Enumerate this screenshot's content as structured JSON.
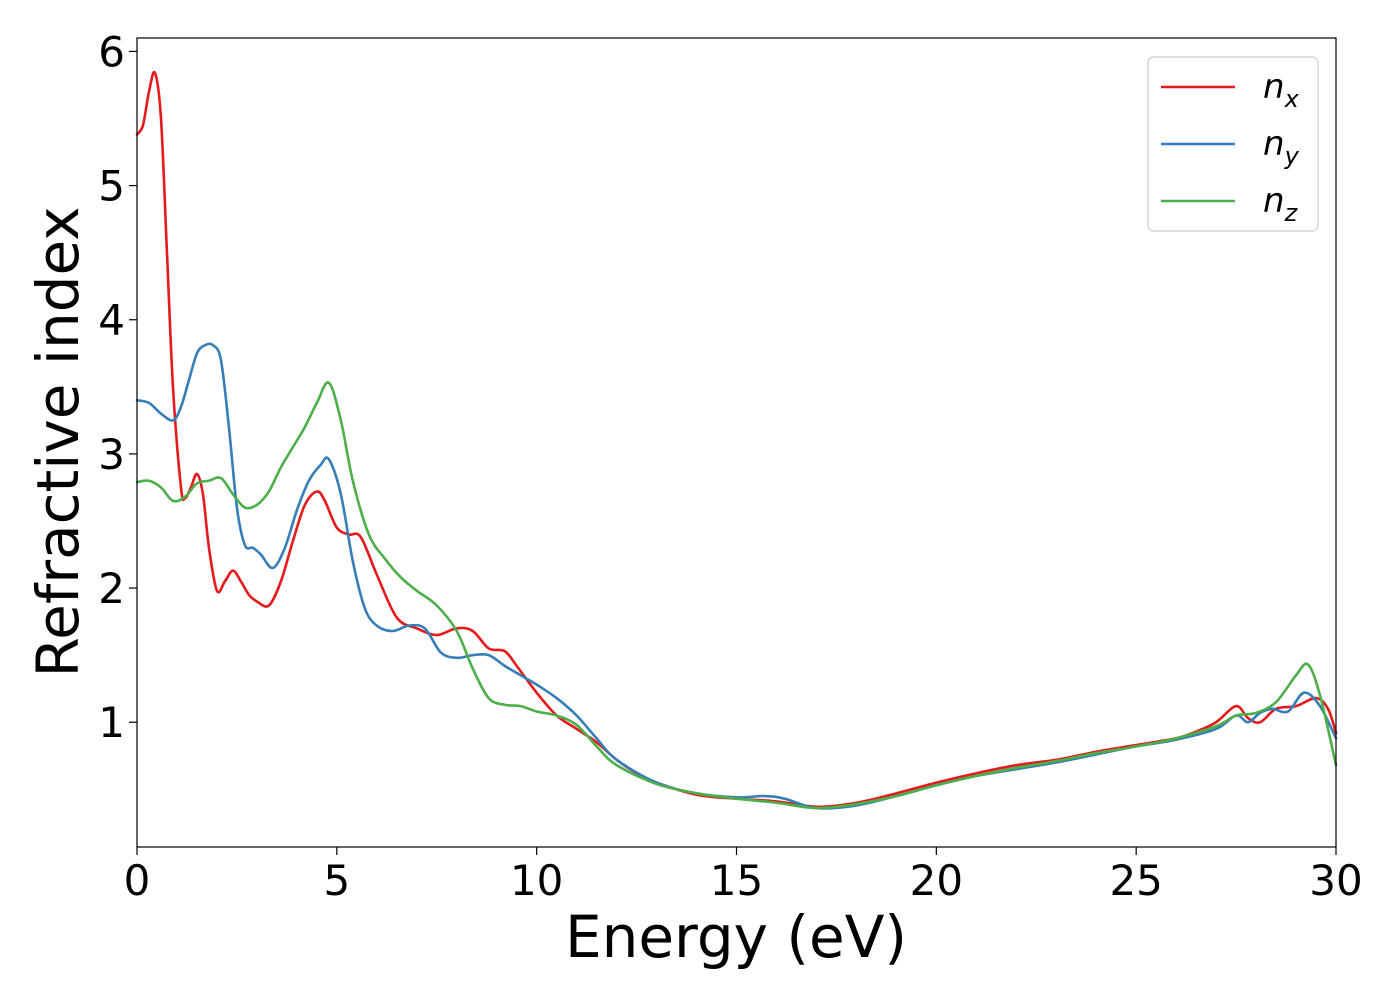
{
  "chart_data": {
    "type": "line",
    "xlabel": "Energy (eV)",
    "ylabel": "Refractive index",
    "xlim": [
      0,
      30
    ],
    "ylim": [
      0.07,
      6.1
    ],
    "xticks": [
      0,
      5,
      10,
      15,
      20,
      25,
      30
    ],
    "yticks": [
      1,
      2,
      3,
      4,
      5,
      6
    ],
    "grid": false,
    "legend_position": "top-right",
    "series": [
      {
        "name": "n",
        "subscript": "x",
        "color": "#e41a1c",
        "x": [
          0,
          0.15,
          0.3,
          0.45,
          0.6,
          0.75,
          0.9,
          1.1,
          1.2,
          1.35,
          1.5,
          1.65,
          1.8,
          2.0,
          2.2,
          2.4,
          2.6,
          2.8,
          3.0,
          3.3,
          3.6,
          3.9,
          4.2,
          4.5,
          4.7,
          5.0,
          5.3,
          5.6,
          6.0,
          6.5,
          7.0,
          7.5,
          8.0,
          8.4,
          8.8,
          9.2,
          9.5,
          10.0,
          10.5,
          11.0,
          11.5,
          12.0,
          12.5,
          13.0,
          14.0,
          15.0,
          16.0,
          17.0,
          18.0,
          19.0,
          20.0,
          21.0,
          22.0,
          23.0,
          24.0,
          25.0,
          26.0,
          26.5,
          27.0,
          27.5,
          27.8,
          28.1,
          28.5,
          29.0,
          29.5,
          29.8,
          30.0
        ],
        "values": [
          5.38,
          5.45,
          5.7,
          5.84,
          5.5,
          4.5,
          3.5,
          2.75,
          2.67,
          2.75,
          2.85,
          2.7,
          2.3,
          1.98,
          2.05,
          2.13,
          2.05,
          1.95,
          1.9,
          1.87,
          2.05,
          2.35,
          2.62,
          2.72,
          2.65,
          2.45,
          2.4,
          2.38,
          2.1,
          1.78,
          1.7,
          1.65,
          1.7,
          1.68,
          1.55,
          1.53,
          1.42,
          1.22,
          1.05,
          0.95,
          0.85,
          0.72,
          0.62,
          0.55,
          0.46,
          0.43,
          0.41,
          0.37,
          0.4,
          0.47,
          0.55,
          0.62,
          0.68,
          0.72,
          0.78,
          0.83,
          0.88,
          0.93,
          1.0,
          1.12,
          1.03,
          1.0,
          1.1,
          1.12,
          1.18,
          1.1,
          0.92
        ]
      },
      {
        "name": "n",
        "subscript": "y",
        "color": "#377eb8",
        "x": [
          0,
          0.3,
          0.6,
          0.9,
          1.1,
          1.3,
          1.5,
          1.7,
          1.9,
          2.1,
          2.3,
          2.5,
          2.7,
          2.9,
          3.1,
          3.4,
          3.7,
          4.0,
          4.3,
          4.6,
          4.8,
          5.1,
          5.4,
          5.7,
          6.0,
          6.4,
          6.8,
          7.2,
          7.6,
          8.0,
          8.4,
          8.8,
          9.2,
          9.6,
          10.0,
          10.5,
          11.0,
          11.5,
          12.0,
          13.0,
          14.0,
          15.0,
          15.7,
          16.2,
          17.0,
          18.0,
          19.0,
          20.0,
          21.0,
          22.0,
          23.0,
          24.0,
          25.0,
          26.0,
          27.0,
          27.5,
          27.8,
          28.1,
          28.4,
          28.8,
          29.2,
          29.6,
          30.0
        ],
        "values": [
          3.4,
          3.38,
          3.3,
          3.25,
          3.35,
          3.55,
          3.75,
          3.81,
          3.81,
          3.7,
          3.2,
          2.6,
          2.32,
          2.3,
          2.25,
          2.15,
          2.3,
          2.58,
          2.8,
          2.92,
          2.96,
          2.7,
          2.2,
          1.85,
          1.72,
          1.68,
          1.72,
          1.7,
          1.52,
          1.48,
          1.5,
          1.5,
          1.42,
          1.35,
          1.28,
          1.18,
          1.05,
          0.88,
          0.72,
          0.55,
          0.47,
          0.44,
          0.45,
          0.43,
          0.36,
          0.38,
          0.45,
          0.53,
          0.6,
          0.65,
          0.7,
          0.76,
          0.82,
          0.87,
          0.95,
          1.05,
          1.0,
          1.07,
          1.1,
          1.08,
          1.22,
          1.12,
          0.88
        ]
      },
      {
        "name": "n",
        "subscript": "z",
        "color": "#4daf4a",
        "x": [
          0,
          0.3,
          0.6,
          0.9,
          1.2,
          1.5,
          1.8,
          2.1,
          2.4,
          2.7,
          3.0,
          3.3,
          3.6,
          3.9,
          4.2,
          4.5,
          4.8,
          5.1,
          5.4,
          5.8,
          6.2,
          6.6,
          7.0,
          7.5,
          8.0,
          8.4,
          8.8,
          9.2,
          9.6,
          10.0,
          10.5,
          11.0,
          11.5,
          12.0,
          13.0,
          14.0,
          15.0,
          16.0,
          17.0,
          18.0,
          19.0,
          20.0,
          21.0,
          22.0,
          23.0,
          24.0,
          25.0,
          26.0,
          27.0,
          27.5,
          28.0,
          28.5,
          29.0,
          29.3,
          29.6,
          30.0
        ],
        "values": [
          2.79,
          2.8,
          2.75,
          2.65,
          2.68,
          2.78,
          2.8,
          2.82,
          2.7,
          2.6,
          2.62,
          2.72,
          2.9,
          3.05,
          3.2,
          3.38,
          3.53,
          3.25,
          2.8,
          2.4,
          2.22,
          2.08,
          1.98,
          1.87,
          1.68,
          1.4,
          1.18,
          1.13,
          1.12,
          1.08,
          1.05,
          0.98,
          0.82,
          0.68,
          0.54,
          0.47,
          0.43,
          0.4,
          0.36,
          0.39,
          0.45,
          0.53,
          0.6,
          0.66,
          0.71,
          0.77,
          0.82,
          0.88,
          0.97,
          1.05,
          1.07,
          1.15,
          1.35,
          1.43,
          1.2,
          0.68
        ]
      }
    ]
  }
}
